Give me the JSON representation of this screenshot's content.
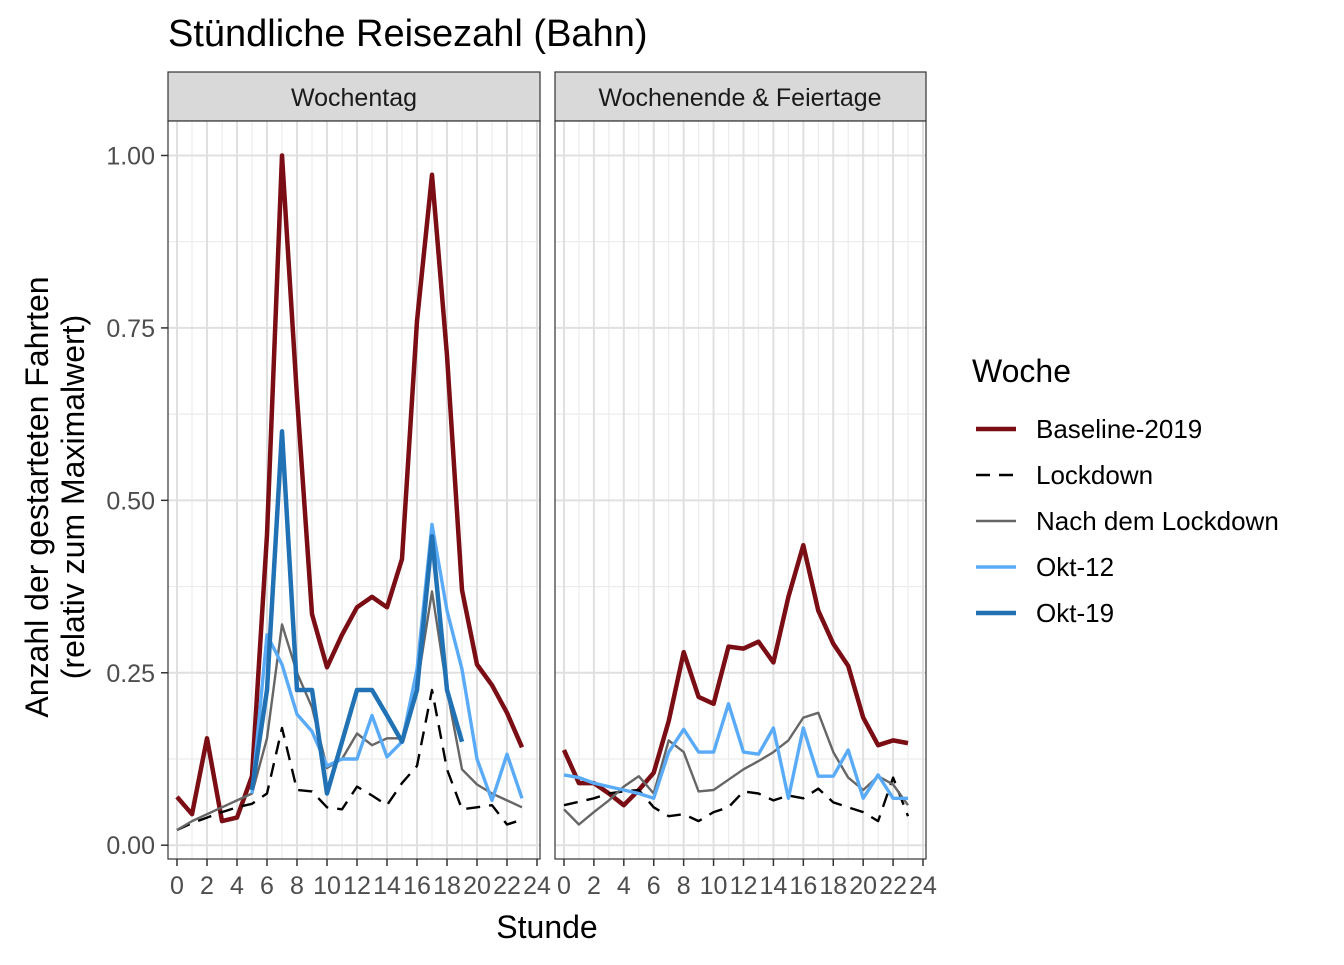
{
  "chart_data": {
    "type": "line",
    "title": "Stündliche Reisezahl (Bahn)",
    "xlabel": "Stunde",
    "ylabel_line1": "Anzahl der gestarteten Fahrten",
    "ylabel_line2": "(relativ zum Maximalwert)",
    "xlim": [
      -0.6,
      24.2
    ],
    "ylim": [
      -0.02,
      1.05
    ],
    "x_ticks": [
      0,
      2,
      4,
      6,
      8,
      10,
      12,
      14,
      16,
      18,
      20,
      22,
      24
    ],
    "y_ticks": [
      0.0,
      0.25,
      0.5,
      0.75,
      1.0
    ],
    "y_tick_labels": [
      "0.00",
      "0.25",
      "0.50",
      "0.75",
      "1.00"
    ],
    "grid": true,
    "legend": {
      "title": "Woche",
      "position": "right"
    },
    "facets": [
      "Wochentag",
      "Wochenende & Feiertage"
    ],
    "series": [
      {
        "name": "Baseline-2019",
        "color": "#7b0d14",
        "style": "solid",
        "width": "thick",
        "facets": [
          {
            "x": [
              0,
              1,
              2,
              3,
              4,
              5,
              6,
              7,
              8,
              9,
              10,
              11,
              12,
              13,
              14,
              15,
              16,
              17,
              18,
              19,
              20,
              21,
              22,
              23
            ],
            "y": [
              0.07,
              0.045,
              0.155,
              0.035,
              0.04,
              0.1,
              0.45,
              1.0,
              0.65,
              0.335,
              0.258,
              0.305,
              0.345,
              0.36,
              0.345,
              0.415,
              0.76,
              0.972,
              0.71,
              0.37,
              0.262,
              0.232,
              0.192,
              0.142
            ]
          },
          {
            "x": [
              0,
              1,
              2,
              3,
              4,
              5,
              6,
              7,
              8,
              9,
              10,
              11,
              12,
              13,
              14,
              15,
              16,
              17,
              18,
              19,
              20,
              21,
              22,
              23
            ],
            "y": [
              0.138,
              0.09,
              0.09,
              0.075,
              0.058,
              0.08,
              0.105,
              0.18,
              0.28,
              0.215,
              0.205,
              0.288,
              0.285,
              0.295,
              0.265,
              0.36,
              0.435,
              0.34,
              0.292,
              0.26,
              0.185,
              0.145,
              0.152,
              0.148
            ]
          }
        ]
      },
      {
        "name": "Lockdown",
        "color": "#000000",
        "style": "dashed",
        "width": "thin",
        "facets": [
          {
            "x": [
              0,
              1,
              2,
              3,
              4,
              5,
              6,
              7,
              8,
              9,
              10,
              11,
              12,
              13,
              14,
              15,
              16,
              17,
              18,
              19,
              20,
              21,
              22,
              23
            ],
            "y": [
              0.022,
              0.032,
              0.04,
              0.048,
              0.055,
              0.06,
              0.075,
              0.17,
              0.08,
              0.078,
              0.055,
              0.052,
              0.085,
              0.072,
              0.058,
              0.09,
              0.115,
              0.225,
              0.11,
              0.052,
              0.055,
              0.058,
              0.03,
              0.037
            ]
          },
          {
            "x": [
              0,
              1,
              2,
              3,
              4,
              5,
              6,
              7,
              8,
              9,
              10,
              11,
              12,
              13,
              14,
              15,
              16,
              17,
              18,
              19,
              20,
              21,
              22,
              23
            ],
            "y": [
              0.058,
              0.063,
              0.068,
              0.075,
              0.078,
              0.08,
              0.055,
              0.042,
              0.045,
              0.035,
              0.048,
              0.055,
              0.078,
              0.075,
              0.065,
              0.072,
              0.068,
              0.082,
              0.062,
              0.055,
              0.048,
              0.035,
              0.098,
              0.042
            ]
          }
        ]
      },
      {
        "name": "Nach dem Lockdown",
        "color": "#666666",
        "style": "solid",
        "width": "thin",
        "facets": [
          {
            "x": [
              0,
              1,
              2,
              3,
              4,
              5,
              6,
              7,
              8,
              9,
              10,
              11,
              12,
              13,
              14,
              15,
              16,
              17,
              18,
              19,
              20,
              21,
              22,
              23
            ],
            "y": [
              0.022,
              0.035,
              0.045,
              0.055,
              0.065,
              0.075,
              0.155,
              0.32,
              0.25,
              0.2,
              0.112,
              0.125,
              0.162,
              0.145,
              0.155,
              0.155,
              0.23,
              0.368,
              0.225,
              0.11,
              0.088,
              0.075,
              0.065,
              0.055
            ]
          },
          {
            "x": [
              0,
              1,
              2,
              3,
              4,
              5,
              6,
              7,
              8,
              9,
              10,
              11,
              12,
              13,
              14,
              15,
              16,
              17,
              18,
              19,
              20,
              21,
              22,
              23
            ],
            "y": [
              0.052,
              0.03,
              0.048,
              0.065,
              0.085,
              0.1,
              0.075,
              0.152,
              0.135,
              0.078,
              0.08,
              0.095,
              0.11,
              0.122,
              0.135,
              0.152,
              0.185,
              0.192,
              0.135,
              0.098,
              0.08,
              0.1,
              0.088,
              0.058
            ]
          }
        ]
      },
      {
        "name": "Okt-12",
        "color": "#5aabf7",
        "style": "solid",
        "width": "medium",
        "facets": [
          {
            "x": [
              5,
              6,
              7,
              8,
              9,
              10,
              11,
              12,
              13,
              14,
              15,
              16,
              17,
              18,
              19,
              20,
              21,
              22,
              23
            ],
            "y": [
              0.075,
              0.305,
              0.262,
              0.19,
              0.165,
              0.115,
              0.125,
              0.125,
              0.188,
              0.128,
              0.15,
              0.255,
              0.465,
              0.34,
              0.255,
              0.125,
              0.065,
              0.132,
              0.068
            ]
          },
          {
            "x": [
              0,
              1,
              2,
              3,
              4,
              5,
              6,
              7,
              8,
              9,
              10,
              11,
              12,
              13,
              14,
              15,
              16,
              17,
              18,
              19,
              20,
              21,
              22,
              23
            ],
            "y": [
              0.102,
              0.098,
              0.09,
              0.085,
              0.08,
              0.075,
              0.068,
              0.135,
              0.168,
              0.135,
              0.135,
              0.205,
              0.135,
              0.132,
              0.17,
              0.068,
              0.17,
              0.1,
              0.1,
              0.138,
              0.068,
              0.102,
              0.068,
              0.068
            ]
          }
        ]
      },
      {
        "name": "Okt-19",
        "color": "#2171b5",
        "style": "solid",
        "width": "thick",
        "facets": [
          {
            "x": [
              5,
              6,
              7,
              8,
              9,
              10,
              11,
              12,
              13,
              14,
              15,
              16,
              17,
              18,
              19
            ],
            "y": [
              0.08,
              0.225,
              0.6,
              0.225,
              0.225,
              0.075,
              0.15,
              0.225,
              0.225,
              0.188,
              0.15,
              0.225,
              0.448,
              0.225,
              0.15
            ]
          },
          {
            "x": [],
            "y": []
          }
        ]
      }
    ]
  }
}
